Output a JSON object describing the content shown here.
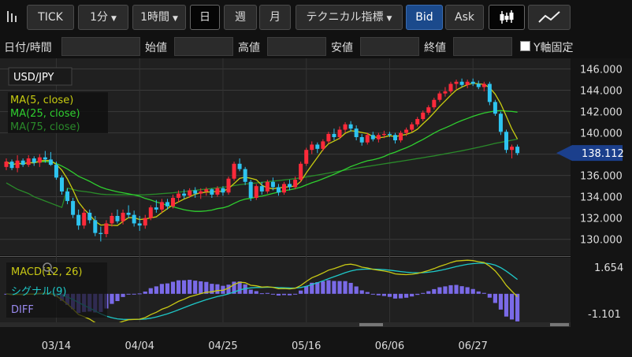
{
  "toolbar": {
    "tick_label": "TICK",
    "interval_minute": "1分",
    "interval_hour": "1時間",
    "day_label": "日",
    "week_label": "週",
    "month_label": "月",
    "technical_label": "テクニカル指標",
    "bid_label": "Bid",
    "ask_label": "Ask",
    "icons": {
      "left": "chart-bars-icon",
      "candle": "candlestick-icon",
      "line": "line-chart-icon"
    }
  },
  "ohlc": {
    "datetime_label": "日付/時間",
    "open_label": "始値",
    "high_label": "高値",
    "low_label": "安値",
    "close_label": "終値",
    "y_fixed_label": "Y軸固定"
  },
  "chart_data": {
    "type": "candlestick",
    "symbol": "USD/JPY",
    "current_price": "138.112",
    "ylim": [
      128.5,
      147.0
    ],
    "y_ticks": [
      "146.000",
      "144.000",
      "142.000",
      "140.000",
      "138.000",
      "136.000",
      "134.000",
      "132.000",
      "130.000"
    ],
    "x_ticks": [
      "03/14",
      "04/04",
      "04/25",
      "05/16",
      "06/06",
      "06/27"
    ],
    "x_tick_index": [
      9,
      24,
      39,
      54,
      69,
      84
    ],
    "candles": [
      [
        136.8,
        137.6,
        136.5,
        137.3
      ],
      [
        137.3,
        137.5,
        136.5,
        136.7
      ],
      [
        136.7,
        137.9,
        136.3,
        137.4
      ],
      [
        137.4,
        137.6,
        136.8,
        137.0
      ],
      [
        137.0,
        137.9,
        136.8,
        137.6
      ],
      [
        137.6,
        137.8,
        136.9,
        137.2
      ],
      [
        137.2,
        138.0,
        136.8,
        137.7
      ],
      [
        137.7,
        138.3,
        137.2,
        137.5
      ],
      [
        137.5,
        138.2,
        136.9,
        137.0
      ],
      [
        137.0,
        137.3,
        135.6,
        135.8
      ],
      [
        135.8,
        136.0,
        134.2,
        134.5
      ],
      [
        134.5,
        134.8,
        133.3,
        133.6
      ],
      [
        133.6,
        133.9,
        132.0,
        132.3
      ],
      [
        132.3,
        132.8,
        130.9,
        131.3
      ],
      [
        131.3,
        132.9,
        131.0,
        132.5
      ],
      [
        132.5,
        132.8,
        131.5,
        131.8
      ],
      [
        131.8,
        132.2,
        130.3,
        130.6
      ],
      [
        130.6,
        131.2,
        129.8,
        130.5
      ],
      [
        130.5,
        131.8,
        130.2,
        131.5
      ],
      [
        131.5,
        132.5,
        131.2,
        132.2
      ],
      [
        132.2,
        132.8,
        131.5,
        131.7
      ],
      [
        131.7,
        132.8,
        131.4,
        132.5
      ],
      [
        132.5,
        133.2,
        132.0,
        132.3
      ],
      [
        132.3,
        132.7,
        131.2,
        131.5
      ],
      [
        131.5,
        132.2,
        130.8,
        131.3
      ],
      [
        131.3,
        132.3,
        131.0,
        132.0
      ],
      [
        132.0,
        133.2,
        131.8,
        133.0
      ],
      [
        133.0,
        133.7,
        132.5,
        132.8
      ],
      [
        132.8,
        133.8,
        132.5,
        133.5
      ],
      [
        133.5,
        133.8,
        132.8,
        133.1
      ],
      [
        133.1,
        134.2,
        132.9,
        133.9
      ],
      [
        133.9,
        134.6,
        133.5,
        134.3
      ],
      [
        134.3,
        134.7,
        133.8,
        134.1
      ],
      [
        134.1,
        134.8,
        133.9,
        134.6
      ],
      [
        134.6,
        134.9,
        133.9,
        134.3
      ],
      [
        134.3,
        134.8,
        133.8,
        134.5
      ],
      [
        134.5,
        134.9,
        134.1,
        134.7
      ],
      [
        134.7,
        134.8,
        133.9,
        134.2
      ],
      [
        134.2,
        135.0,
        134.0,
        134.8
      ],
      [
        134.8,
        135.0,
        134.1,
        134.4
      ],
      [
        134.4,
        135.9,
        134.2,
        135.7
      ],
      [
        135.7,
        137.3,
        135.5,
        137.1
      ],
      [
        137.1,
        137.6,
        136.4,
        136.6
      ],
      [
        136.6,
        136.8,
        135.1,
        135.4
      ],
      [
        135.4,
        135.6,
        133.6,
        133.9
      ],
      [
        133.9,
        135.2,
        133.7,
        135.0
      ],
      [
        135.0,
        135.4,
        134.2,
        134.5
      ],
      [
        134.5,
        135.6,
        134.3,
        135.4
      ],
      [
        135.4,
        135.8,
        134.6,
        134.9
      ],
      [
        134.9,
        135.2,
        134.1,
        134.4
      ],
      [
        134.4,
        135.4,
        134.2,
        135.2
      ],
      [
        135.2,
        135.6,
        134.6,
        134.9
      ],
      [
        134.9,
        135.9,
        134.7,
        135.6
      ],
      [
        135.6,
        137.3,
        135.4,
        137.1
      ],
      [
        137.1,
        138.6,
        136.9,
        138.4
      ],
      [
        138.4,
        139.2,
        138.0,
        138.9
      ],
      [
        138.9,
        139.1,
        138.1,
        138.5
      ],
      [
        138.5,
        139.4,
        138.3,
        139.2
      ],
      [
        139.2,
        140.1,
        139.0,
        139.9
      ],
      [
        139.9,
        140.4,
        139.3,
        139.6
      ],
      [
        139.6,
        140.6,
        139.4,
        140.3
      ],
      [
        140.3,
        141.0,
        140.0,
        140.8
      ],
      [
        140.8,
        141.1,
        140.1,
        140.4
      ],
      [
        140.4,
        140.7,
        139.3,
        139.6
      ],
      [
        139.6,
        139.9,
        138.8,
        139.1
      ],
      [
        139.1,
        140.0,
        138.9,
        139.8
      ],
      [
        139.8,
        140.1,
        139.2,
        139.4
      ],
      [
        139.4,
        140.0,
        139.1,
        139.8
      ],
      [
        139.8,
        140.2,
        139.5,
        139.9
      ],
      [
        139.9,
        140.1,
        139.6,
        139.8
      ],
      [
        139.8,
        140.0,
        139.0,
        139.3
      ],
      [
        139.3,
        140.2,
        139.1,
        140.0
      ],
      [
        140.0,
        140.5,
        139.7,
        140.3
      ],
      [
        140.3,
        141.0,
        140.1,
        140.8
      ],
      [
        140.8,
        141.5,
        140.6,
        141.3
      ],
      [
        141.3,
        142.1,
        141.1,
        141.9
      ],
      [
        141.9,
        142.6,
        141.7,
        142.4
      ],
      [
        142.4,
        143.3,
        142.2,
        143.1
      ],
      [
        143.1,
        143.9,
        142.9,
        143.7
      ],
      [
        143.7,
        144.3,
        143.4,
        143.9
      ],
      [
        143.9,
        144.8,
        143.7,
        144.6
      ],
      [
        144.6,
        145.0,
        144.1,
        144.8
      ],
      [
        144.8,
        145.1,
        144.3,
        144.5
      ],
      [
        144.5,
        145.0,
        144.2,
        144.8
      ],
      [
        144.8,
        145.1,
        144.4,
        144.6
      ],
      [
        144.6,
        144.9,
        144.1,
        144.3
      ],
      [
        144.3,
        144.8,
        143.9,
        144.6
      ],
      [
        144.6,
        144.8,
        142.6,
        142.9
      ],
      [
        142.9,
        143.1,
        141.6,
        141.8
      ],
      [
        141.8,
        142.0,
        139.8,
        140.1
      ],
      [
        140.1,
        140.3,
        138.1,
        138.4
      ],
      [
        138.4,
        138.9,
        137.6,
        138.7
      ],
      [
        138.7,
        138.9,
        137.9,
        138.1
      ]
    ],
    "ma_legend": [
      {
        "name": "MA(5, close)",
        "color": "#c8cc10"
      },
      {
        "name": "MA(25, close)",
        "color": "#2fcf2f"
      },
      {
        "name": "MA(75, close)",
        "color": "#2a8a2a"
      }
    ],
    "ma75_start": [
      135.3,
      135.0,
      134.7,
      134.5,
      134.3,
      134.0,
      133.8,
      133.6,
      133.4,
      133.2,
      133.0
    ],
    "macd": {
      "ylim": [
        -1.5,
        1.9
      ],
      "top_label": "1.654",
      "bottom_label": "-1.101",
      "legend": [
        {
          "name": "MACD(12, 26)",
          "color": "#c8c814"
        },
        {
          "name": "シグナル(9)",
          "color": "#1ec8c8"
        },
        {
          "name": "DIFF",
          "color": "#9a8af0"
        }
      ]
    }
  }
}
